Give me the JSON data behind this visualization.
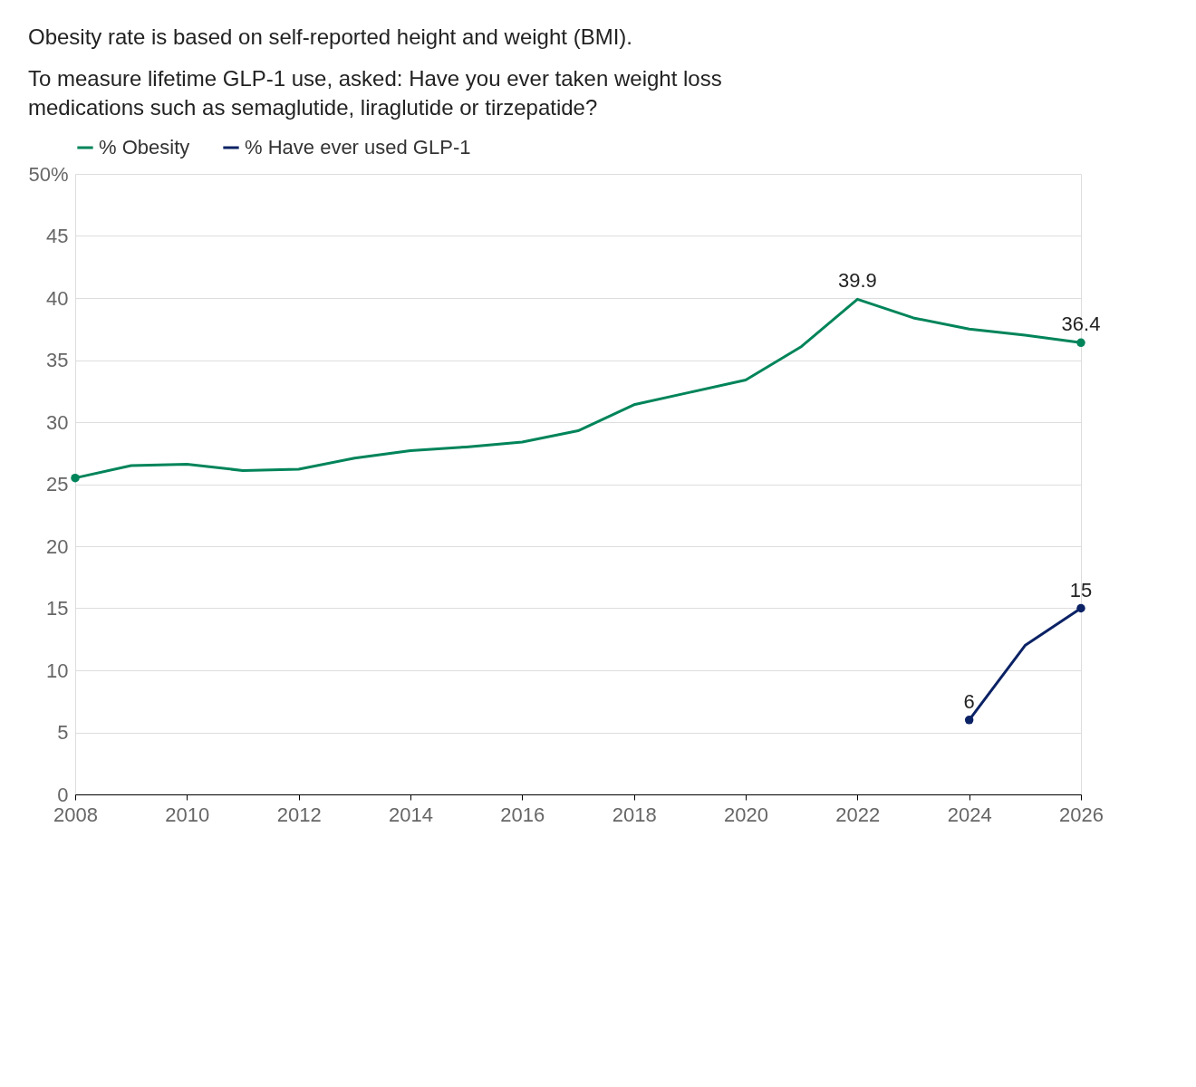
{
  "chart_data": {
    "type": "line",
    "title": "Obesity rate is based on self-reported height and weight (BMI).",
    "subtitle": "To measure lifetime GLP-1 use, asked: Have you ever taken weight loss medications such as semaglutide, liraglutide or tirzepatide?",
    "x": [
      2008,
      2009,
      2010,
      2011,
      2012,
      2013,
      2014,
      2015,
      2016,
      2017,
      2018,
      2019,
      2020,
      2021,
      2022,
      2023,
      2024,
      2025,
      2026
    ],
    "series": [
      {
        "name": "% Obesity",
        "color": "#00845a",
        "values": [
          25.5,
          26.5,
          26.6,
          26.1,
          26.2,
          27.1,
          27.7,
          28.0,
          28.4,
          29.3,
          31.4,
          32.4,
          33.4,
          36.1,
          39.9,
          38.4,
          37.5,
          37.0,
          36.4
        ],
        "value_labels": [
          null,
          null,
          null,
          null,
          null,
          null,
          null,
          null,
          null,
          null,
          null,
          null,
          null,
          null,
          "39.9",
          null,
          null,
          null,
          "36.4"
        ]
      },
      {
        "name": "% Have ever used GLP-1",
        "color": "#0b2265",
        "values": [
          null,
          null,
          null,
          null,
          null,
          null,
          null,
          null,
          null,
          null,
          null,
          null,
          null,
          null,
          null,
          null,
          6,
          12,
          15
        ],
        "value_labels": [
          null,
          null,
          null,
          null,
          null,
          null,
          null,
          null,
          null,
          null,
          null,
          null,
          null,
          null,
          null,
          null,
          "6",
          null,
          "15"
        ]
      }
    ],
    "xlim": [
      2008,
      2026
    ],
    "xticks": [
      2008,
      2010,
      2012,
      2014,
      2016,
      2018,
      2020,
      2022,
      2024,
      2026
    ],
    "ylim": [
      0,
      50
    ],
    "yticks": [
      0,
      5,
      10,
      15,
      20,
      25,
      30,
      35,
      40,
      45,
      {
        "value": 50,
        "label": "50%"
      }
    ],
    "grid": "y",
    "legend": "top left",
    "line_style": "solid"
  }
}
